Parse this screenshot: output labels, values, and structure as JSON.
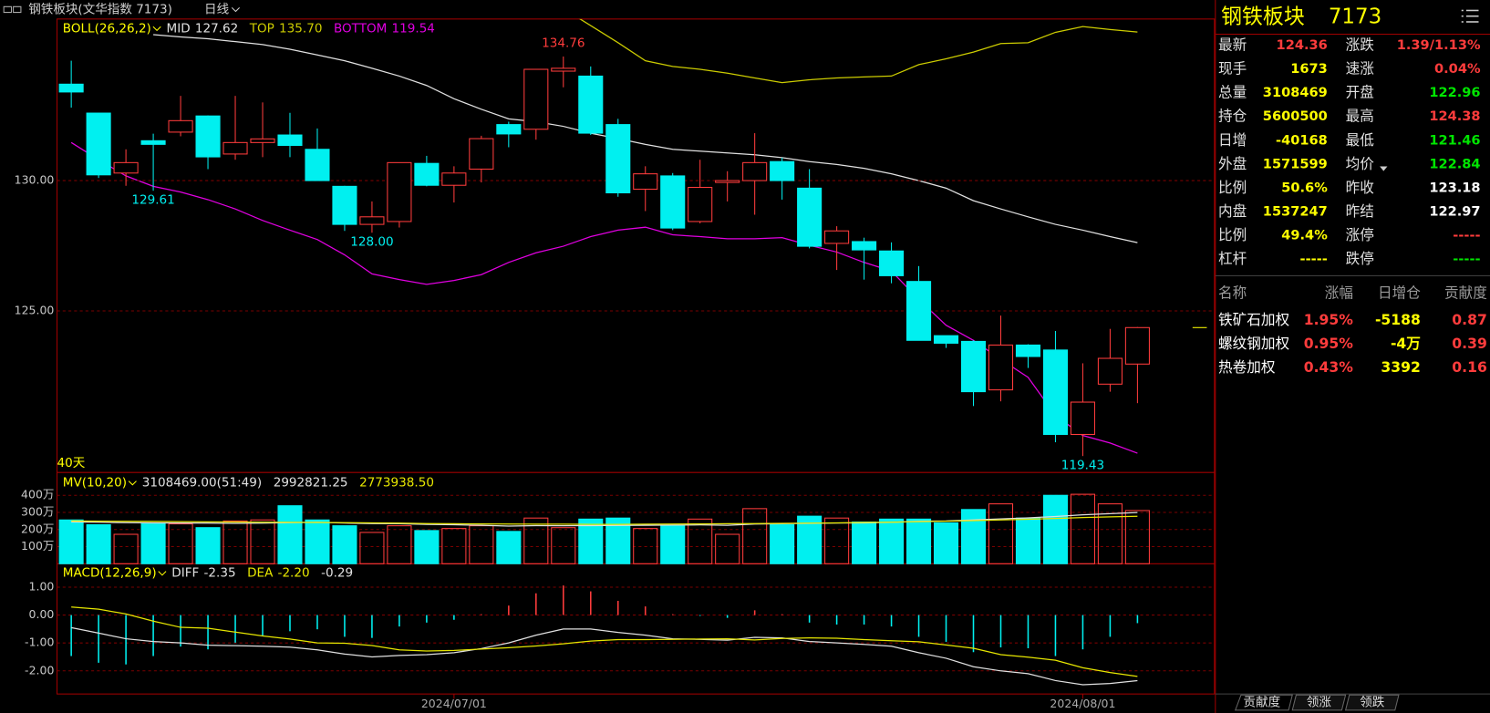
{
  "header": {
    "title": "钢铁板块(文华指数 7173)",
    "period": "日线"
  },
  "chart_data": [
    {
      "type": "candlestick",
      "indicator": "BOLL(26,26,2)",
      "span_label": "40天",
      "categories": [
        null,
        null,
        null,
        null,
        null,
        null,
        null,
        null,
        null,
        null,
        null,
        null,
        null,
        null,
        "2024/07/01",
        null,
        null,
        null,
        null,
        null,
        null,
        null,
        null,
        null,
        null,
        null,
        null,
        null,
        null,
        null,
        null,
        null,
        null,
        null,
        null,
        null,
        null,
        "2024/08/01",
        null,
        null
      ],
      "open": [
        133.7,
        132.59,
        130.29,
        131.53,
        131.86,
        132.48,
        131.02,
        131.46,
        131.75,
        131.2,
        129.78,
        128.32,
        128.43,
        130.66,
        129.82,
        130.44,
        132.15,
        131.97,
        134.2,
        134.01,
        132.15,
        129.67,
        130.18,
        128.43,
        129.93,
        130.0,
        130.73,
        129.71,
        127.59,
        127.66,
        127.3,
        126.13,
        124.05,
        123.83,
        121.97,
        123.69,
        123.5,
        120.26,
        122.19,
        122.96
      ],
      "high": [
        134.6,
        132.6,
        131.2,
        131.8,
        133.25,
        132.5,
        133.25,
        133.0,
        132.6,
        132.0,
        129.8,
        129.2,
        130.7,
        130.95,
        130.55,
        131.72,
        132.26,
        134.27,
        134.76,
        134.38,
        132.37,
        130.55,
        130.29,
        130.8,
        130.36,
        131.82,
        130.88,
        130.44,
        128.25,
        127.81,
        127.63,
        126.72,
        124.05,
        123.87,
        124.82,
        123.72,
        124.23,
        122.99,
        124.31,
        124.38
      ],
      "low": [
        132.8,
        130.1,
        129.8,
        129.61,
        131.7,
        130.44,
        130.8,
        130.9,
        130.9,
        130.0,
        128.07,
        128.0,
        128.2,
        129.78,
        129.16,
        129.93,
        131.28,
        131.57,
        133.58,
        131.75,
        129.38,
        128.83,
        128.1,
        128.36,
        129.2,
        128.69,
        129.27,
        127.4,
        126.57,
        126.2,
        126.06,
        123.87,
        123.58,
        121.35,
        121.53,
        122.81,
        119.96,
        119.43,
        121.9,
        121.46
      ],
      "close": [
        133.4,
        130.22,
        130.69,
        131.39,
        132.3,
        130.91,
        131.46,
        131.6,
        131.35,
        130.0,
        128.32,
        128.61,
        130.69,
        129.82,
        130.29,
        131.61,
        131.79,
        134.27,
        134.31,
        131.82,
        129.53,
        130.26,
        128.18,
        129.74,
        130.0,
        130.69,
        130.0,
        127.48,
        128.07,
        127.34,
        126.35,
        123.87,
        123.76,
        121.9,
        123.69,
        123.25,
        120.26,
        121.5,
        123.18,
        124.36
      ],
      "high_labels": [
        null,
        null,
        null,
        null,
        null,
        null,
        null,
        null,
        null,
        null,
        null,
        null,
        null,
        null,
        null,
        null,
        null,
        null,
        "134.76",
        null,
        null,
        null,
        null,
        null,
        null,
        null,
        null,
        null,
        null,
        null,
        null,
        null,
        null,
        null,
        null,
        null,
        null,
        null,
        null,
        null
      ],
      "low_labels": [
        null,
        null,
        null,
        "129.61",
        null,
        null,
        null,
        null,
        null,
        null,
        null,
        "128.00",
        null,
        null,
        null,
        null,
        null,
        null,
        null,
        null,
        null,
        null,
        null,
        null,
        null,
        null,
        null,
        null,
        null,
        null,
        null,
        null,
        null,
        null,
        null,
        null,
        null,
        "119.43",
        null,
        null
      ],
      "up_color": "#ff3c3c",
      "down_color": "#00f0f0",
      "label_color": "#ffff00",
      "series": [
        {
          "name": "MID",
          "color": "#e0e0e0",
          "value_label": "127.62",
          "values": [
            null,
            null,
            null,
            135.6,
            135.51,
            135.44,
            135.33,
            135.22,
            135.04,
            134.82,
            134.6,
            134.31,
            134.01,
            133.65,
            133.14,
            132.74,
            132.37,
            132.26,
            132.08,
            131.82,
            131.61,
            131.39,
            131.2,
            131.13,
            131.06,
            130.99,
            130.88,
            130.73,
            130.62,
            130.47,
            130.26,
            130.0,
            129.71,
            129.23,
            128.91,
            128.61,
            128.32,
            128.1,
            127.85,
            127.62
          ]
        },
        {
          "name": "TOP",
          "color": "#cccc00",
          "value_label": "135.70",
          "values": [
            null,
            null,
            null,
            null,
            null,
            null,
            null,
            null,
            null,
            null,
            null,
            null,
            null,
            null,
            null,
            null,
            null,
            null,
            136.6,
            135.95,
            135.29,
            134.6,
            134.38,
            134.27,
            134.12,
            133.94,
            133.76,
            133.87,
            133.94,
            133.98,
            134.01,
            134.45,
            134.67,
            134.93,
            135.26,
            135.29,
            135.69,
            135.91,
            135.8,
            135.7
          ]
        },
        {
          "name": "BOTTOM",
          "color": "#e000e0",
          "value_label": "119.54",
          "values": [
            131.46,
            130.8,
            130.18,
            129.78,
            129.56,
            129.27,
            128.91,
            128.47,
            128.1,
            127.74,
            127.15,
            126.42,
            126.2,
            126.02,
            126.17,
            126.39,
            126.86,
            127.23,
            127.48,
            127.85,
            128.1,
            128.21,
            127.92,
            127.85,
            127.77,
            127.77,
            127.81,
            127.52,
            127.26,
            126.86,
            126.53,
            125.44,
            124.45,
            123.87,
            123.14,
            122.45,
            120.99,
            120.22,
            119.93,
            119.54
          ]
        }
      ],
      "ylim": [
        118.8,
        136.2
      ],
      "yticks": [
        {
          "value": 130,
          "label": "130.00"
        },
        {
          "value": 125,
          "label": "125.00"
        }
      ],
      "grid": true
    },
    {
      "type": "volume",
      "indicator": "MV(10,20)",
      "summary": "3108469.00(51:49)",
      "values": [
        2560000,
        2280000,
        1720000,
        2330000,
        2330000,
        2110000,
        2500000,
        2560000,
        3390000,
        2560000,
        2220000,
        1830000,
        2220000,
        1940000,
        2060000,
        2220000,
        1890000,
        2670000,
        2110000,
        2610000,
        2670000,
        2060000,
        2220000,
        2610000,
        1720000,
        3220000,
        2280000,
        2780000,
        2670000,
        2440000,
        2610000,
        2610000,
        2390000,
        3170000,
        3500000,
        2670000,
        4000000,
        4060000,
        3500000,
        3108469
      ],
      "series": [
        {
          "color": "#e0e0e0",
          "value_label": "2992821.25",
          "values": [
            2450000,
            2430000,
            2400000,
            2390000,
            2380000,
            2370000,
            2360000,
            2370000,
            2400000,
            2420000,
            2380000,
            2350000,
            2340000,
            2300000,
            2280000,
            2250000,
            2200000,
            2230000,
            2220000,
            2230000,
            2240000,
            2250000,
            2260000,
            2270000,
            2250000,
            2320000,
            2340000,
            2360000,
            2380000,
            2390000,
            2420000,
            2480000,
            2500000,
            2560000,
            2620000,
            2680000,
            2760000,
            2860000,
            2930000,
            2992821.25
          ]
        },
        {
          "color": "#e6e600",
          "value_label": "2773938.50",
          "values": [
            2500000,
            2490000,
            2480000,
            2470000,
            2460000,
            2450000,
            2440000,
            2430000,
            2420000,
            2410000,
            2400000,
            2390000,
            2370000,
            2350000,
            2340000,
            2330000,
            2320000,
            2310000,
            2310000,
            2300000,
            2300000,
            2310000,
            2320000,
            2330000,
            2340000,
            2350000,
            2360000,
            2370000,
            2390000,
            2410000,
            2430000,
            2460000,
            2490000,
            2520000,
            2560000,
            2600000,
            2650000,
            2700000,
            2740000,
            2773938.5
          ]
        }
      ],
      "ylim": [
        0,
        5333333
      ],
      "yticks": [
        {
          "value": 4000000,
          "label": "400万"
        },
        {
          "value": 3000000,
          "label": "300万"
        },
        {
          "value": 2000000,
          "label": "200万"
        },
        {
          "value": 1000000,
          "label": "100万"
        }
      ],
      "grid": true
    },
    {
      "type": "macd",
      "indicator": "MACD(12,26,9)",
      "value_label": "-0.29",
      "values": [
        -1.47,
        -1.71,
        -1.77,
        -1.47,
        -1.13,
        -1.23,
        -0.99,
        -0.75,
        -0.58,
        -0.51,
        -0.78,
        -0.82,
        -0.41,
        -0.27,
        -0.17,
        0.03,
        0.34,
        0.78,
        1.06,
        0.85,
        0.51,
        0.31,
        0.03,
        -0.03,
        -0.1,
        0.17,
        0.03,
        -0.27,
        -0.34,
        -0.34,
        -0.41,
        -0.78,
        -0.96,
        -1.33,
        -1.16,
        -1.19,
        -1.47,
        -1.23,
        -0.78,
        -0.29
      ],
      "series": [
        {
          "name": "DIFF",
          "color": "#e0e0e0",
          "value_label": "-2.35",
          "values": [
            -0.45,
            -0.65,
            -0.85,
            -0.95,
            -1.0,
            -1.08,
            -1.1,
            -1.12,
            -1.15,
            -1.25,
            -1.4,
            -1.5,
            -1.45,
            -1.42,
            -1.35,
            -1.2,
            -1.0,
            -0.72,
            -0.5,
            -0.5,
            -0.62,
            -0.72,
            -0.85,
            -0.87,
            -0.9,
            -0.8,
            -0.82,
            -0.95,
            -1.0,
            -1.05,
            -1.12,
            -1.35,
            -1.55,
            -1.85,
            -2.0,
            -2.1,
            -2.35,
            -2.5,
            -2.45,
            -2.35
          ]
        },
        {
          "name": "DEA",
          "color": "#e6e600",
          "value_label": "-2.20",
          "values": [
            0.29,
            0.21,
            0.04,
            -0.22,
            -0.44,
            -0.47,
            -0.61,
            -0.75,
            -0.86,
            -1.0,
            -1.01,
            -1.09,
            -1.25,
            -1.29,
            -1.27,
            -1.22,
            -1.17,
            -1.11,
            -1.03,
            -0.93,
            -0.88,
            -0.88,
            -0.87,
            -0.86,
            -0.85,
            -0.89,
            -0.84,
            -0.82,
            -0.83,
            -0.88,
            -0.92,
            -0.96,
            -1.07,
            -1.19,
            -1.42,
            -1.51,
            -1.62,
            -1.89,
            -2.06,
            -2.2
          ]
        }
      ],
      "ylim": [
        -2.83,
        1.84
      ],
      "yticks": [
        {
          "value": 1,
          "label": "1.00"
        },
        {
          "value": 0,
          "label": "0.00"
        },
        {
          "value": -1,
          "label": "-1.00"
        },
        {
          "value": -2,
          "label": "-2.00"
        }
      ],
      "grid": true
    }
  ],
  "quote_panel": {
    "title": "钢铁板块",
    "code": "7173",
    "rows": [
      [
        {
          "label": "最新",
          "value": "124.36",
          "color": "#ff3c3c"
        },
        {
          "label": "涨跌",
          "value": "1.39/1.13%",
          "color": "#ff3c3c"
        }
      ],
      [
        {
          "label": "现手",
          "value": "1673",
          "color": "#ffff00"
        },
        {
          "label": "速涨",
          "value": "0.04%",
          "color": "#ff3c3c"
        }
      ],
      [
        {
          "label": "总量",
          "value": "3108469",
          "color": "#ffff00"
        },
        {
          "label": "开盘",
          "value": "122.96",
          "color": "#00e600"
        }
      ],
      [
        {
          "label": "持仓",
          "value": "5600500",
          "color": "#ffff00"
        },
        {
          "label": "最高",
          "value": "124.38",
          "color": "#ff3c3c"
        }
      ],
      [
        {
          "label": "日增",
          "value": "-40168",
          "color": "#ffff00"
        },
        {
          "label": "最低",
          "value": "121.46",
          "color": "#00e600"
        }
      ],
      [
        {
          "label": "外盘",
          "value": "1571599",
          "color": "#ffff00"
        },
        {
          "label": "均价",
          "value": "122.84",
          "color": "#00e600"
        }
      ],
      [
        {
          "label": "比例",
          "value": "50.6%",
          "color": "#ffff00"
        },
        {
          "label": "昨收",
          "value": "123.18",
          "color": "#ffffff"
        }
      ],
      [
        {
          "label": "内盘",
          "value": "1537247",
          "color": "#ffff00"
        },
        {
          "label": "昨结",
          "value": "122.97",
          "color": "#ffffff"
        }
      ],
      [
        {
          "label": "比例",
          "value": "49.4%",
          "color": "#ffff00"
        },
        {
          "label": "涨停",
          "value": "-----",
          "color": "#ff3c3c"
        }
      ],
      [
        {
          "label": "杠杆",
          "value": "-----",
          "color": "#ffff00"
        },
        {
          "label": "跌停",
          "value": "-----",
          "color": "#00e600"
        }
      ]
    ]
  },
  "contribution_table": {
    "columns": [
      "名称",
      "涨幅",
      "日增仓",
      "贡献度"
    ],
    "column_colors": [
      "#ffffff",
      "#ff3c3c",
      "#ffff00",
      "#ff3c3c"
    ],
    "rows": [
      [
        "铁矿石加权",
        "1.95%",
        "-5188",
        "0.87"
      ],
      [
        "螺纹钢加权",
        "0.95%",
        "-4万",
        "0.39"
      ],
      [
        "热卷加权",
        "0.43%",
        "3392",
        "0.16"
      ]
    ]
  },
  "tabs": [
    "贡献度",
    "领涨",
    "领跌"
  ]
}
